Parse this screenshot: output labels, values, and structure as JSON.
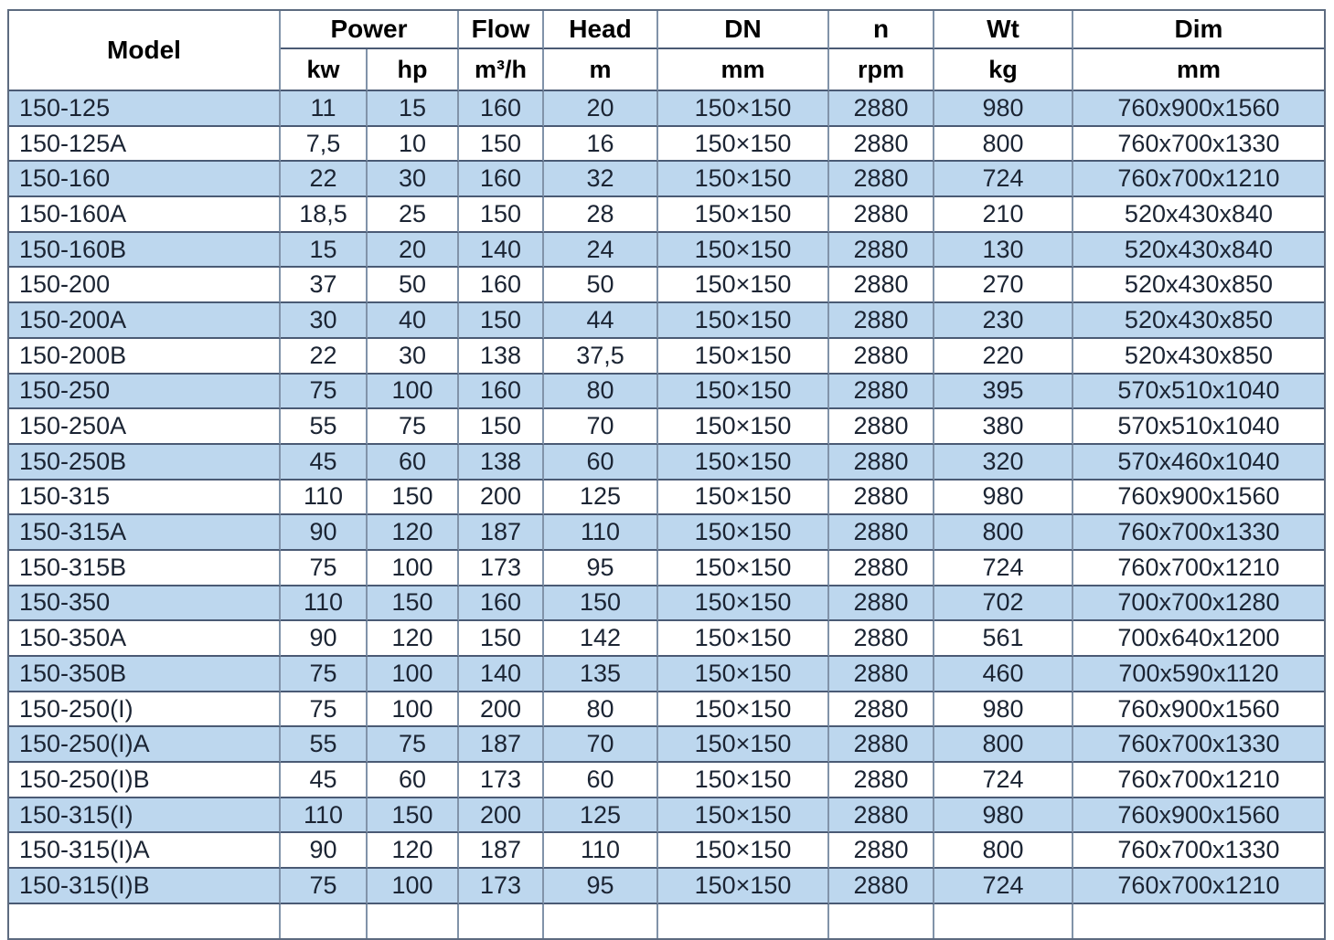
{
  "table": {
    "title_semantic": "Pump model specification table",
    "header": {
      "model": "Model",
      "power": "Power",
      "flow": "Flow",
      "head": "Head",
      "dn": "DN",
      "n": "n",
      "wt": "Wt",
      "dim": "Dim",
      "units": {
        "power_kw": "kw",
        "power_hp": "hp",
        "flow": "m³/h",
        "head": "m",
        "dn": "mm",
        "n": "rpm",
        "wt": "kg",
        "dim": "mm"
      }
    },
    "column_keys": [
      "model",
      "power-kw",
      "power-hp",
      "flow",
      "head",
      "dn",
      "n",
      "wt",
      "dim"
    ],
    "rows": [
      [
        "150-125",
        "11",
        "15",
        "160",
        "20",
        "150×150",
        "2880",
        "980",
        "760x900x1560"
      ],
      [
        "150-125A",
        "7,5",
        "10",
        "150",
        "16",
        "150×150",
        "2880",
        "800",
        "760x700x1330"
      ],
      [
        "150-160",
        "22",
        "30",
        "160",
        "32",
        "150×150",
        "2880",
        "724",
        "760x700x1210"
      ],
      [
        "150-160A",
        "18,5",
        "25",
        "150",
        "28",
        "150×150",
        "2880",
        "210",
        "520x430x840"
      ],
      [
        "150-160B",
        "15",
        "20",
        "140",
        "24",
        "150×150",
        "2880",
        "130",
        "520x430x840"
      ],
      [
        "150-200",
        "37",
        "50",
        "160",
        "50",
        "150×150",
        "2880",
        "270",
        "520x430x850"
      ],
      [
        "150-200A",
        "30",
        "40",
        "150",
        "44",
        "150×150",
        "2880",
        "230",
        "520x430x850"
      ],
      [
        "150-200B",
        "22",
        "30",
        "138",
        "37,5",
        "150×150",
        "2880",
        "220",
        "520x430x850"
      ],
      [
        "150-250",
        "75",
        "100",
        "160",
        "80",
        "150×150",
        "2880",
        "395",
        "570x510x1040"
      ],
      [
        "150-250A",
        "55",
        "75",
        "150",
        "70",
        "150×150",
        "2880",
        "380",
        "570x510x1040"
      ],
      [
        "150-250B",
        "45",
        "60",
        "138",
        "60",
        "150×150",
        "2880",
        "320",
        "570x460x1040"
      ],
      [
        "150-315",
        "110",
        "150",
        "200",
        "125",
        "150×150",
        "2880",
        "980",
        "760x900x1560"
      ],
      [
        "150-315A",
        "90",
        "120",
        "187",
        "110",
        "150×150",
        "2880",
        "800",
        "760x700x1330"
      ],
      [
        "150-315B",
        "75",
        "100",
        "173",
        "95",
        "150×150",
        "2880",
        "724",
        "760x700x1210"
      ],
      [
        "150-350",
        "110",
        "150",
        "160",
        "150",
        "150×150",
        "2880",
        "702",
        "700x700x1280"
      ],
      [
        "150-350A",
        "90",
        "120",
        "150",
        "142",
        "150×150",
        "2880",
        "561",
        "700x640x1200"
      ],
      [
        "150-350B",
        "75",
        "100",
        "140",
        "135",
        "150×150",
        "2880",
        "460",
        "700x590x1120"
      ],
      [
        "150-250(I)",
        "75",
        "100",
        "200",
        "80",
        "150×150",
        "2880",
        "980",
        "760x900x1560"
      ],
      [
        "150-250(I)A",
        "55",
        "75",
        "187",
        "70",
        "150×150",
        "2880",
        "800",
        "760x700x1330"
      ],
      [
        "150-250(I)B",
        "45",
        "60",
        "173",
        "60",
        "150×150",
        "2880",
        "724",
        "760x700x1210"
      ],
      [
        "150-315(I)",
        "110",
        "150",
        "200",
        "125",
        "150×150",
        "2880",
        "980",
        "760x900x1560"
      ],
      [
        "150-315(I)A",
        "90",
        "120",
        "187",
        "110",
        "150×150",
        "2880",
        "800",
        "760x700x1330"
      ],
      [
        "150-315(I)B",
        "75",
        "100",
        "173",
        "95",
        "150×150",
        "2880",
        "724",
        "760x700x1210"
      ]
    ],
    "colors": {
      "row_blue": "#bdd7ee",
      "row_white": "#ffffff",
      "grid_horizontal": "#4a5a74",
      "grid_vertical": "#8193a9",
      "outer_border": "#5d6b80",
      "cell_text": "#1b2433",
      "header_text": "#000000"
    }
  }
}
